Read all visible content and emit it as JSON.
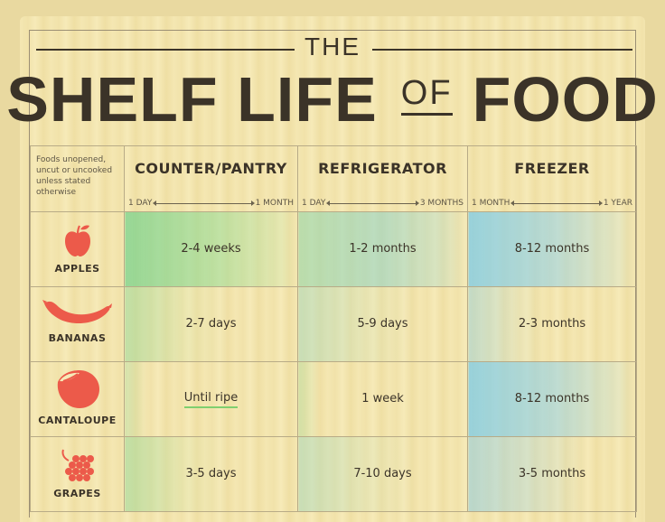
{
  "title": {
    "the": "THE",
    "shelf_life": "SHELF LIFE",
    "of": "OF",
    "food": "FOOD"
  },
  "note": "Foods unopened, uncut or uncooked unless stated otherwise",
  "columns": [
    {
      "label": "COUNTER/PANTRY",
      "range_start": "1 DAY",
      "range_end": "1 MONTH"
    },
    {
      "label": "REFRIGERATOR",
      "range_start": "1 DAY",
      "range_end": "3 MONTHS"
    },
    {
      "label": "FREEZER",
      "range_start": "1 MONTH",
      "range_end": "1 YEAR"
    }
  ],
  "rows": [
    {
      "food": "APPLES",
      "icon": "apple-icon",
      "pantry": "2-4 weeks",
      "fridge": "1-2 months",
      "freezer": "8-12 months"
    },
    {
      "food": "BANANAS",
      "icon": "banana-icon",
      "pantry": "2-7 days",
      "fridge": "5-9 days",
      "freezer": "2-3 months"
    },
    {
      "food": "CANTALOUPE",
      "icon": "cantaloupe-icon",
      "pantry": "Until ripe",
      "fridge": "1 week",
      "freezer": "8-12 months"
    },
    {
      "food": "GRAPES",
      "icon": "grapes-icon",
      "pantry": "3-5 days",
      "fridge": "7-10 days",
      "freezer": "3-5 months"
    }
  ],
  "colors": {
    "icon_red": "#ec5a4a",
    "text": "#3b3328",
    "green": "#7fcf6f",
    "blue": "#8fd0e6"
  }
}
